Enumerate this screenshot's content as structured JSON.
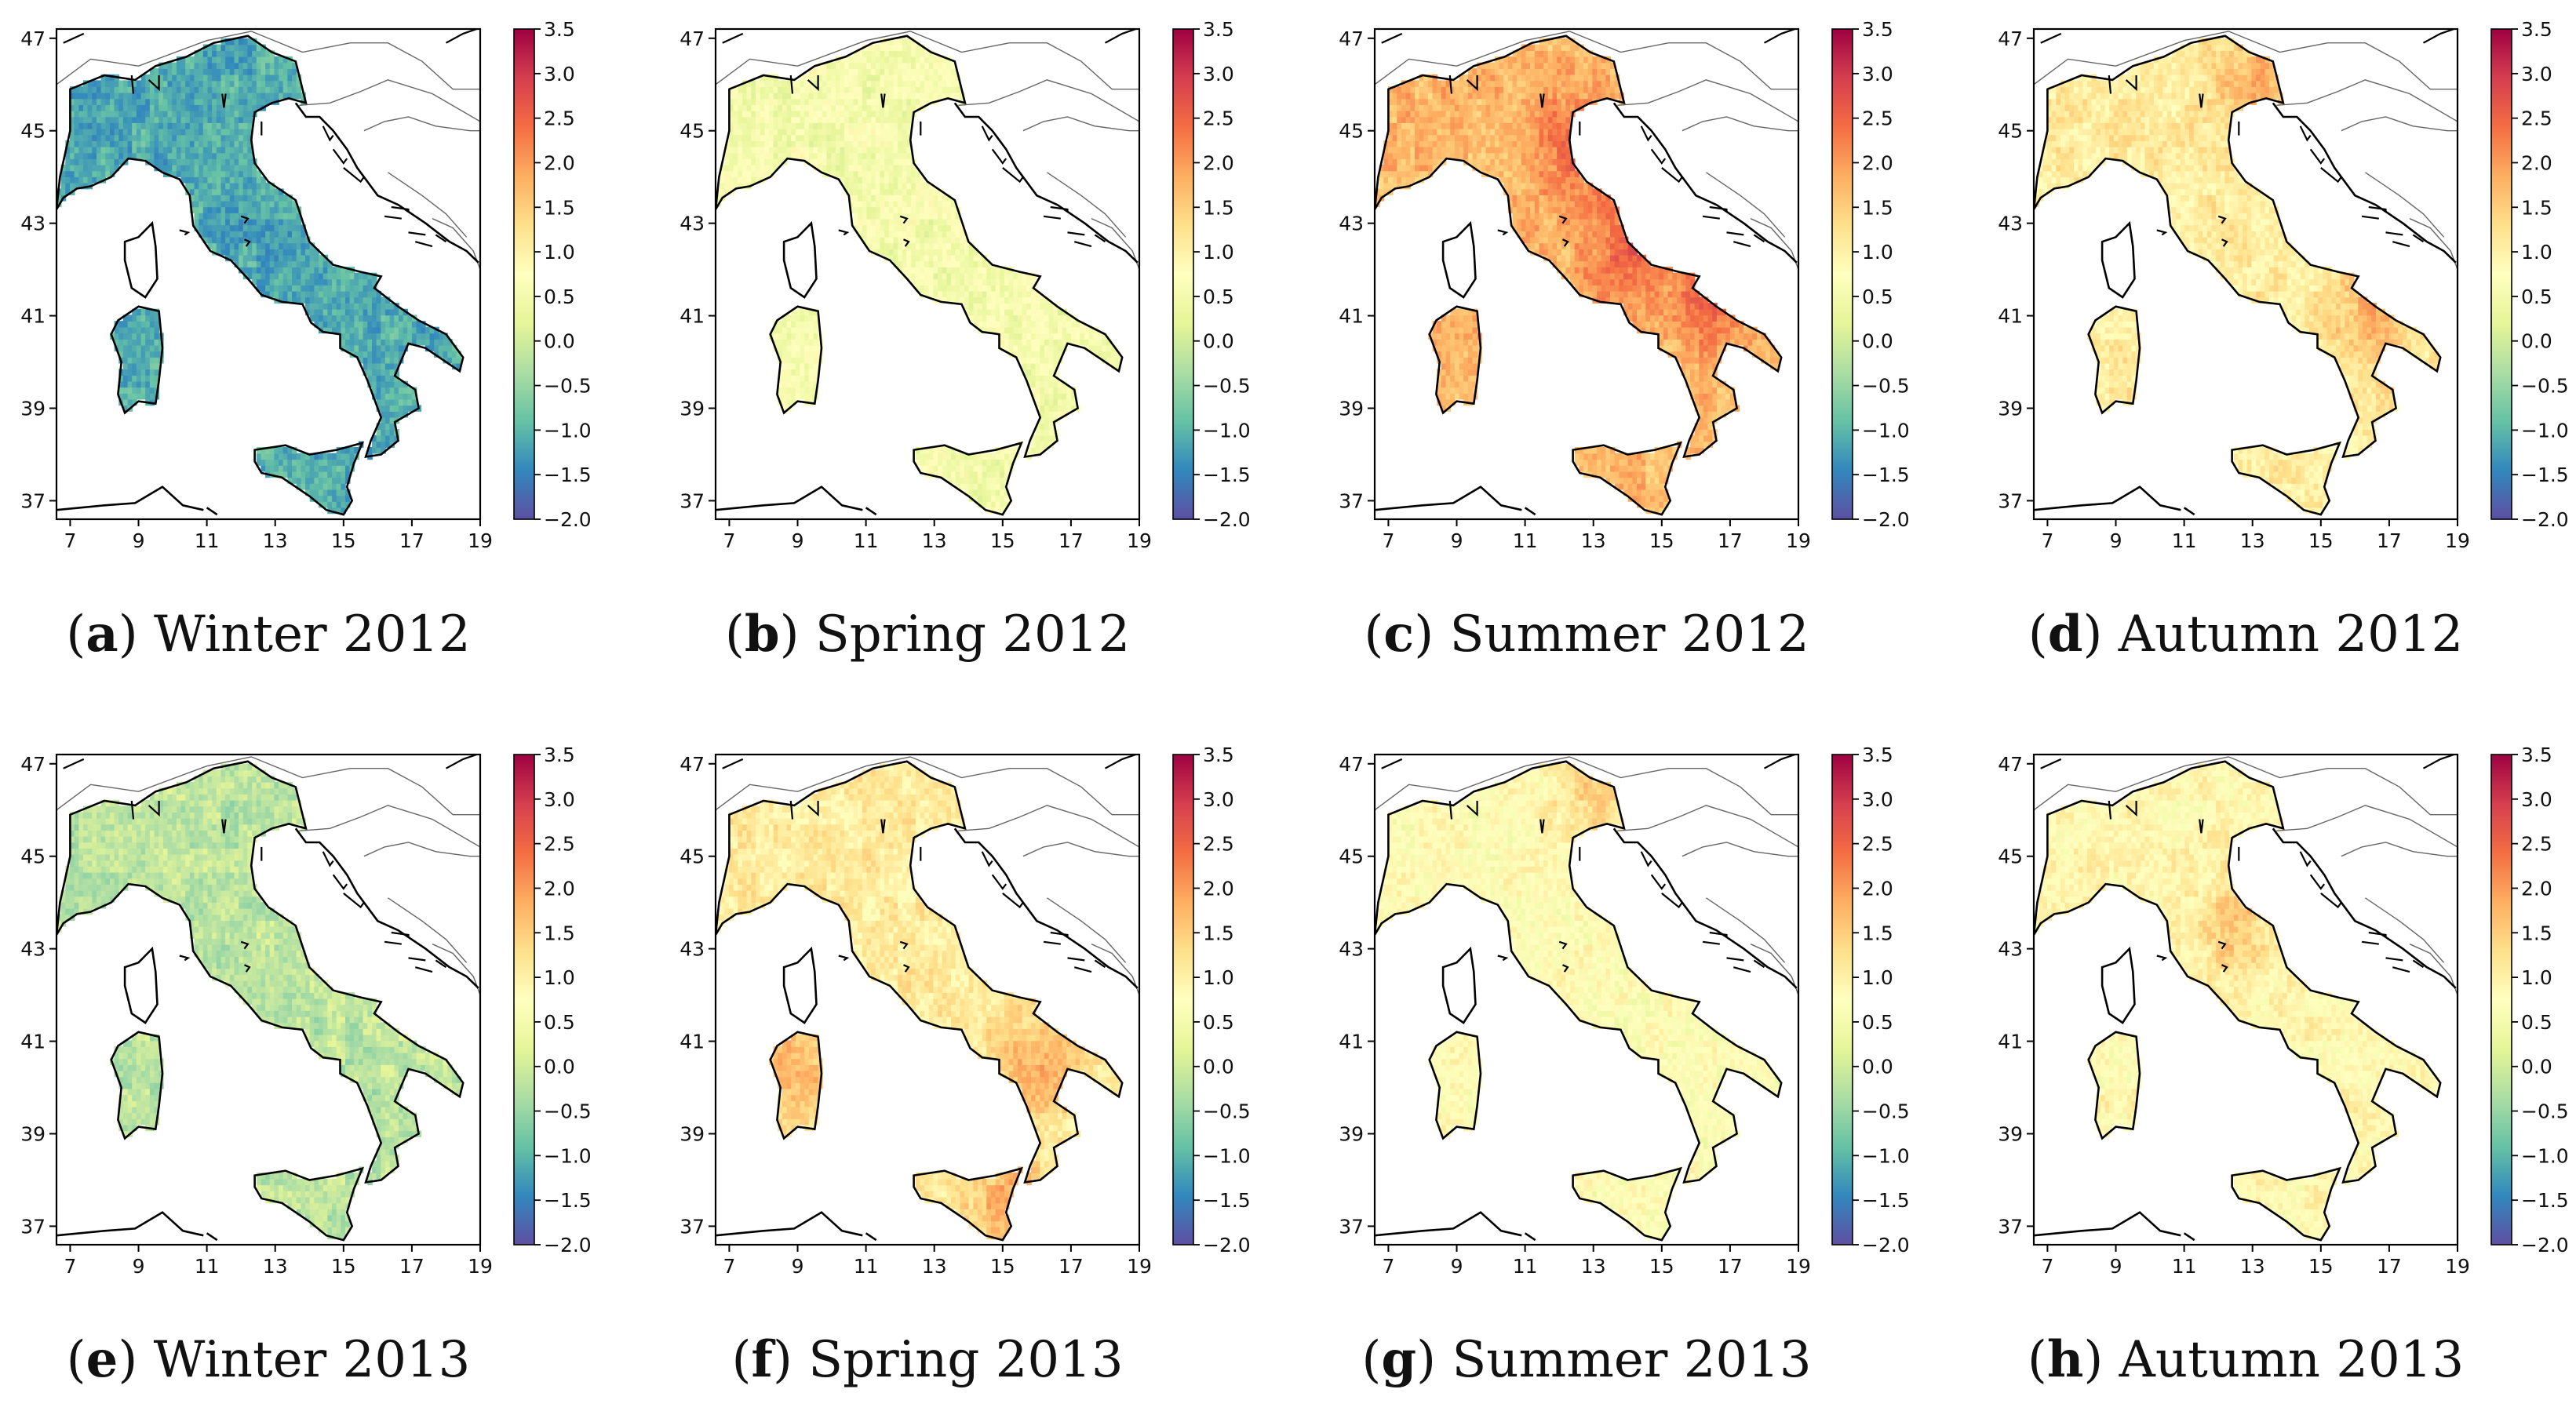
{
  "chart_data": [
    {
      "type": "heatmap",
      "caption_label": "a",
      "caption_title": "Winter 2012",
      "map_tone": 0.16,
      "hotspots": [],
      "colorbar": {
        "min": -2.0,
        "max": 3.5
      }
    },
    {
      "type": "heatmap",
      "caption_label": "b",
      "caption_title": "Spring 2012",
      "map_tone": 0.46,
      "hotspots": [],
      "colorbar": {
        "min": -2.0,
        "max": 3.5
      }
    },
    {
      "type": "heatmap",
      "caption_label": "c",
      "caption_title": "Summer 2012",
      "map_tone": 0.68,
      "hotspots": [
        [
          12.5,
          44.6
        ],
        [
          16.5,
          41.5
        ],
        [
          14,
          42.3
        ]
      ],
      "colorbar": {
        "min": -2.0,
        "max": 3.5
      }
    },
    {
      "type": "heatmap",
      "caption_label": "d",
      "caption_title": "Autumn 2012",
      "map_tone": 0.56,
      "hotspots": [
        [
          16.5,
          41
        ],
        [
          13,
          46
        ]
      ],
      "colorbar": {
        "min": -2.0,
        "max": 3.5
      }
    },
    {
      "type": "heatmap",
      "caption_label": "e",
      "caption_title": "Winter 2013",
      "map_tone": 0.33,
      "hotspots": [],
      "colorbar": {
        "min": -2.0,
        "max": 3.5
      }
    },
    {
      "type": "heatmap",
      "caption_label": "f",
      "caption_title": "Spring 2013",
      "map_tone": 0.56,
      "hotspots": [
        [
          15,
          37.5
        ],
        [
          16,
          40.5
        ],
        [
          9,
          40.5
        ]
      ],
      "colorbar": {
        "min": -2.0,
        "max": 3.5
      }
    },
    {
      "type": "heatmap",
      "caption_label": "g",
      "caption_title": "Summer 2013",
      "map_tone": 0.5,
      "hotspots": [
        [
          13,
          46.3
        ]
      ],
      "colorbar": {
        "min": -2.0,
        "max": 3.5
      }
    },
    {
      "type": "heatmap",
      "caption_label": "h",
      "caption_title": "Autumn 2013",
      "map_tone": 0.52,
      "hotspots": [
        [
          12.5,
          43.5
        ]
      ],
      "colorbar": {
        "min": -2.0,
        "max": 3.5
      }
    }
  ],
  "axes": {
    "x_ticks": [
      "7",
      "9",
      "11",
      "13",
      "15",
      "17",
      "19"
    ],
    "y_ticks": [
      "47",
      "45",
      "43",
      "41",
      "39",
      "37"
    ],
    "xlim": [
      6.6,
      19.0
    ],
    "ylim": [
      36.6,
      47.2
    ]
  },
  "colorbar_ticks": [
    "3.5",
    "3.0",
    "2.5",
    "2.0",
    "1.5",
    "1.0",
    "0.5",
    "0.0",
    "−0.5",
    "−1.0",
    "−1.5",
    "−2.0"
  ],
  "colormap": [
    "#5e4fa2",
    "#3288bd",
    "#66c2a5",
    "#abdda4",
    "#e6f598",
    "#ffffbf",
    "#fee08b",
    "#fdae61",
    "#f46d43",
    "#d53e4f",
    "#9e0142"
  ]
}
